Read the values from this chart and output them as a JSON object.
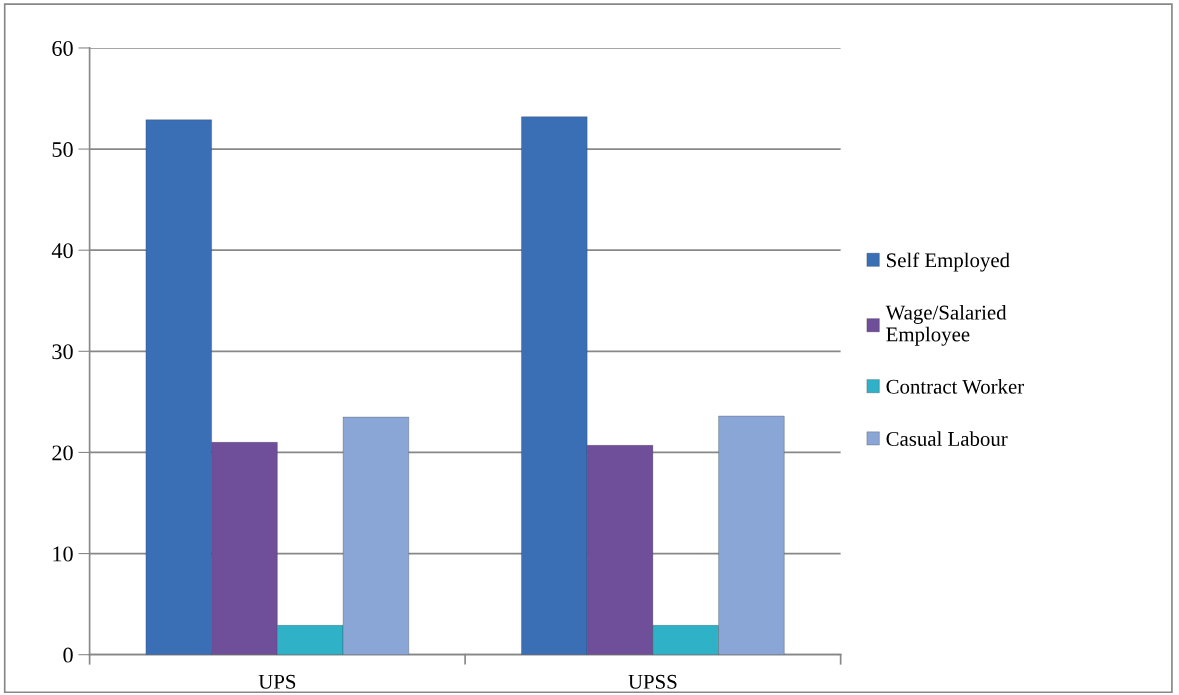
{
  "chart_data": {
    "type": "bar",
    "categories": [
      "UPS",
      "UPSS"
    ],
    "series": [
      {
        "name": "Self Employed",
        "color": "#3a6fb5",
        "values": [
          52.9,
          53.2
        ]
      },
      {
        "name": "Wage/Salaried\nEmployee",
        "color": "#6f4f99",
        "values": [
          21.0,
          20.7
        ]
      },
      {
        "name": "Contract Worker",
        "color": "#2fb2c8",
        "values": [
          2.9,
          2.9
        ]
      },
      {
        "name": "Casual Labour",
        "color": "#8aa6d6",
        "values": [
          23.5,
          23.6
        ]
      }
    ],
    "ylim": [
      0,
      60
    ],
    "yticks": [
      0,
      10,
      20,
      30,
      40,
      50,
      60
    ],
    "grid": "y",
    "legend": "right"
  }
}
